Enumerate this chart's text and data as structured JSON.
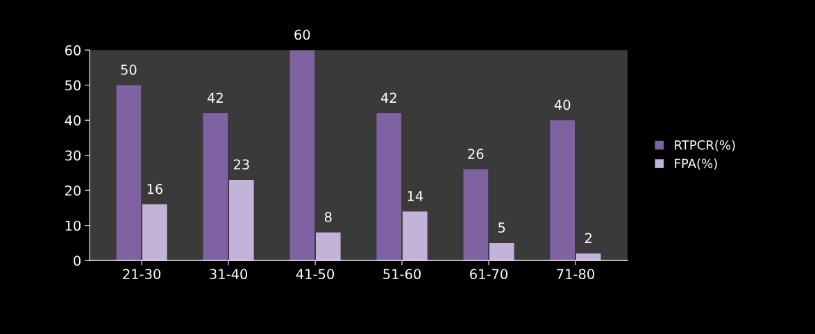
{
  "chart_data": {
    "type": "bar",
    "categories": [
      "21-30",
      "31-40",
      "41-50",
      "51-60",
      "61-70",
      "71-80"
    ],
    "series": [
      {
        "name": "RTPCR(%)",
        "color": "#7f62a1",
        "values": [
          50,
          42,
          60,
          42,
          26,
          40
        ]
      },
      {
        "name": "FPA(%)",
        "color": "#c3b3d9",
        "values": [
          16,
          23,
          8,
          14,
          5,
          2
        ]
      }
    ],
    "ylim": [
      0,
      60
    ],
    "yticks": [
      0,
      10,
      20,
      30,
      40,
      50,
      60
    ],
    "data_labels": true,
    "legend": "right",
    "grid": false
  }
}
